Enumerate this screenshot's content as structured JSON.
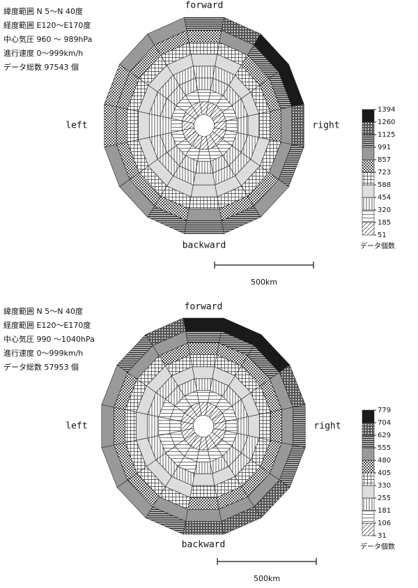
{
  "chart_data": [
    {
      "type": "polar-heatmap",
      "info": [
        "緯度範囲  N  5〜N 40度",
        "経度範囲  E120〜E170度",
        "中心気圧  960 〜 989hPa",
        "進行速度      0〜999km/h",
        "データ総数      97543 個"
      ],
      "directions": {
        "forward": "forward",
        "right": "right",
        "backward": "backward",
        "left": "left"
      },
      "legend_title": "データ個数",
      "legend_ticks": [
        51,
        185,
        320,
        454,
        588,
        723,
        857,
        991,
        1125,
        1260,
        1394
      ],
      "scale_label": "500km",
      "cells": [
        [
          130,
          140,
          140,
          140,
          130,
          130,
          120,
          130,
          130,
          130,
          120,
          120,
          120,
          120,
          130,
          130
        ],
        [
          240,
          250,
          250,
          250,
          240,
          240,
          230,
          240,
          240,
          240,
          230,
          220,
          220,
          230,
          230,
          240
        ],
        [
          340,
          350,
          360,
          360,
          350,
          340,
          330,
          340,
          350,
          340,
          330,
          320,
          320,
          330,
          330,
          340
        ],
        [
          440,
          450,
          470,
          470,
          460,
          450,
          440,
          450,
          460,
          450,
          440,
          430,
          420,
          430,
          440,
          440
        ],
        [
          560,
          580,
          600,
          600,
          590,
          570,
          560,
          570,
          580,
          570,
          550,
          540,
          530,
          540,
          550,
          560
        ],
        [
          700,
          720,
          760,
          760,
          740,
          700,
          680,
          700,
          720,
          700,
          680,
          650,
          640,
          650,
          680,
          690
        ],
        [
          850,
          900,
          1000,
          1000,
          950,
          900,
          850,
          850,
          900,
          850,
          800,
          780,
          750,
          760,
          800,
          830
        ],
        [
          1000,
          1150,
          1300,
          1350,
          1150,
          1000,
          950,
          1000,
          1050,
          1000,
          950,
          900,
          850,
          850,
          900,
          950
        ]
      ]
    },
    {
      "type": "polar-heatmap",
      "info": [
        "緯度範囲  N  5〜N 40度",
        "経度範囲  E120〜E170度",
        "中心気圧  990 〜1040hPa",
        "進行速度      0〜999km/h",
        "データ総数      57953 個"
      ],
      "directions": {
        "forward": "forward",
        "right": "right",
        "backward": "backward",
        "left": "left"
      },
      "legend_title": "データ個数",
      "legend_ticks": [
        31,
        106,
        181,
        255,
        330,
        405,
        480,
        555,
        629,
        704,
        779
      ],
      "scale_label": "500km",
      "cells": [
        [
          80,
          80,
          80,
          80,
          70,
          70,
          70,
          80,
          70,
          70,
          70,
          60,
          60,
          70,
          70,
          80
        ],
        [
          140,
          140,
          140,
          130,
          130,
          130,
          130,
          130,
          130,
          120,
          120,
          120,
          120,
          120,
          130,
          130
        ],
        [
          200,
          210,
          200,
          200,
          190,
          190,
          190,
          200,
          190,
          180,
          180,
          170,
          170,
          180,
          190,
          200
        ],
        [
          270,
          280,
          270,
          260,
          260,
          250,
          250,
          260,
          260,
          250,
          240,
          240,
          230,
          240,
          250,
          260
        ],
        [
          350,
          360,
          350,
          340,
          330,
          330,
          330,
          340,
          330,
          320,
          310,
          300,
          300,
          310,
          320,
          340
        ],
        [
          440,
          450,
          440,
          430,
          420,
          410,
          420,
          430,
          420,
          400,
          390,
          380,
          380,
          390,
          400,
          420
        ],
        [
          560,
          580,
          560,
          540,
          520,
          500,
          520,
          540,
          520,
          480,
          460,
          450,
          440,
          450,
          480,
          520
        ],
        [
          760,
          770,
          740,
          700,
          600,
          560,
          650,
          700,
          640,
          560,
          520,
          500,
          480,
          500,
          560,
          700
        ]
      ]
    }
  ]
}
